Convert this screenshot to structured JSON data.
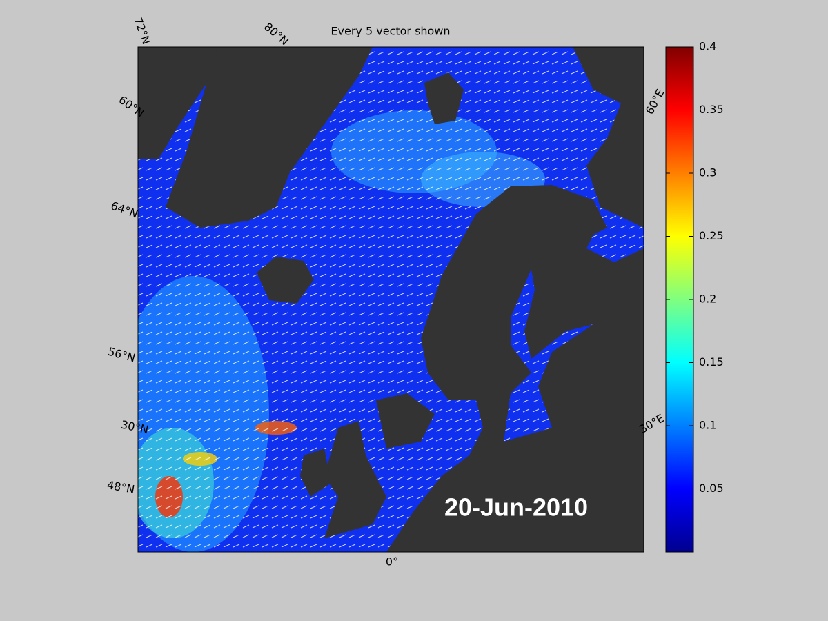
{
  "title": "Every 5 vector shown",
  "date_label": "20-Jun-2010",
  "graticule_labels": [
    "72°N",
    "80°N",
    "60°N",
    "64°N",
    "56°N",
    "30°N",
    "48°N",
    "0°",
    "60°E",
    "30°E"
  ],
  "colorbar": {
    "lim": [
      0,
      0.4
    ],
    "ticks": [
      0.05,
      0.1,
      0.15,
      0.2,
      0.25,
      0.3,
      0.35,
      0.4
    ]
  }
}
